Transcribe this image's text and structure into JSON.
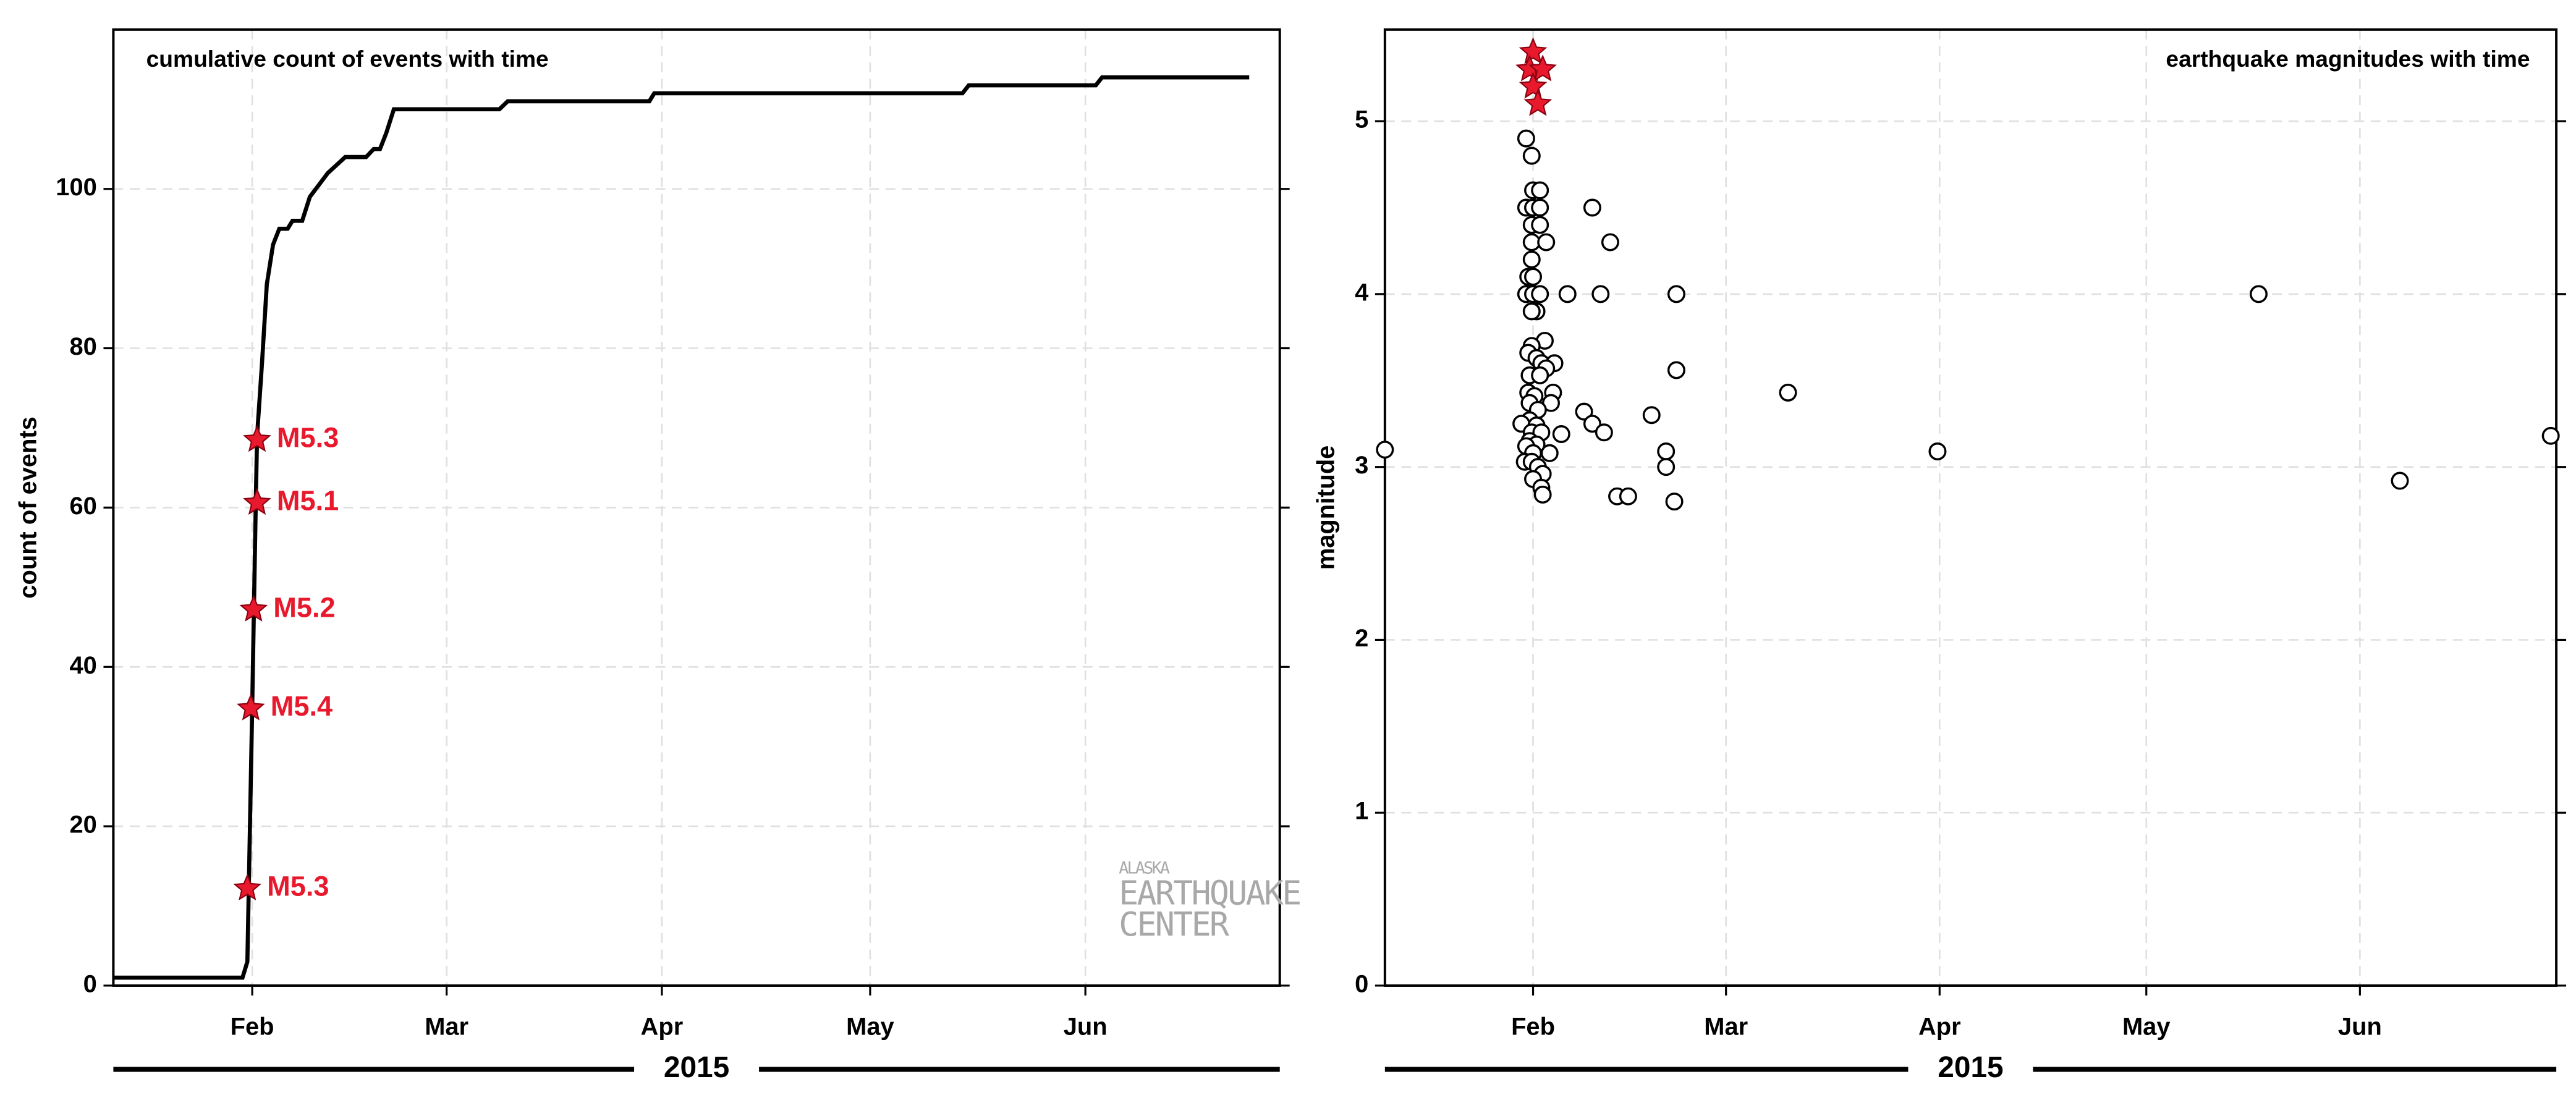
{
  "chart_data": [
    {
      "type": "line",
      "title": "cumulative count of events with time",
      "title_position": "upper left",
      "ylabel": "count of events",
      "xlabel": "2015",
      "color": "#000000",
      "x": [
        12,
        30.6,
        31.3,
        31.5,
        32,
        32.5,
        32.7,
        33.4,
        34.1,
        35,
        35.9,
        37.1,
        37.8,
        39.2,
        40.3,
        42.9,
        45.4,
        48.4,
        49.5,
        50.4,
        51.3,
        52.4,
        67.6,
        68.8,
        89.2,
        89.9,
        134.3,
        135.2,
        153.5,
        154.4,
        175.6
      ],
      "values": [
        1,
        1,
        3,
        12,
        35,
        60,
        69,
        78,
        88,
        93,
        95,
        95,
        96,
        96,
        99,
        102,
        104,
        104,
        105,
        105,
        107,
        110,
        110,
        111,
        111,
        112,
        112,
        113,
        113,
        114,
        114
      ],
      "xlim": [
        12,
        180
      ],
      "ylim": [
        0,
        120
      ],
      "xticks": [
        {
          "value": 32,
          "label": "Feb"
        },
        {
          "value": 60,
          "label": "Mar"
        },
        {
          "value": 91,
          "label": "Apr"
        },
        {
          "value": 121,
          "label": "May"
        },
        {
          "value": 152,
          "label": "Jun"
        }
      ],
      "yticks": [
        0,
        20,
        40,
        60,
        80,
        100
      ],
      "grid": true,
      "annotations": [
        {
          "x": 31.3,
          "y": 12.2,
          "text": "M5.3"
        },
        {
          "x": 31.8,
          "y": 34.8,
          "text": "M5.4"
        },
        {
          "x": 32.2,
          "y": 47.2,
          "text": "M5.2"
        },
        {
          "x": 32.7,
          "y": 60.6,
          "text": "M5.1"
        },
        {
          "x": 32.7,
          "y": 68.5,
          "text": "M5.3"
        }
      ],
      "annotation_color": "#e8192c",
      "watermark": [
        "ALASKA",
        "EARTHQUAKE",
        "CENTER"
      ]
    },
    {
      "type": "scatter",
      "title": "earthquake magnitudes with time",
      "title_position": "upper right",
      "ylabel": "magnitude",
      "xlabel": "2015",
      "color": "#000000",
      "x": [
        10.5,
        179.7,
        31.0,
        31.8,
        32.0,
        33.0,
        31.0,
        32.0,
        33.0,
        31.8,
        33.0,
        31.8,
        33.9,
        31.8,
        31.3,
        32.0,
        31.0,
        32.0,
        33.0,
        32.5,
        31.8,
        33.7,
        31.8,
        31.3,
        32.5,
        33.2,
        35.1,
        33.9,
        31.5,
        33.0,
        31.3,
        34.9,
        32.2,
        34.6,
        31.5,
        32.7,
        31.5,
        30.3,
        32.5,
        31.8,
        33.2,
        36.1,
        31.5,
        32.5,
        31.0,
        32.0,
        34.4,
        30.8,
        31.8,
        32.7,
        33.4,
        32.0,
        33.2,
        33.4,
        37.0,
        40.6,
        43.2,
        41.8,
        39.4,
        40.6,
        42.3,
        44.2,
        45.8,
        49.2,
        51.3,
        51.3,
        52.8,
        52.8,
        52.5,
        69.0,
        90.7,
        137.3,
        157.8
      ],
      "values": [
        3.1,
        3.18,
        4.9,
        4.8,
        4.6,
        4.6,
        4.5,
        4.5,
        4.5,
        4.4,
        4.4,
        4.3,
        4.3,
        4.2,
        4.1,
        4.1,
        4.0,
        4.0,
        4.0,
        3.9,
        3.9,
        3.73,
        3.7,
        3.66,
        3.63,
        3.6,
        3.6,
        3.57,
        3.53,
        3.53,
        3.43,
        3.43,
        3.41,
        3.37,
        3.37,
        3.33,
        3.27,
        3.25,
        3.24,
        3.2,
        3.2,
        3.19,
        3.15,
        3.13,
        3.12,
        3.08,
        3.08,
        3.03,
        3.03,
        3.0,
        2.96,
        2.93,
        2.88,
        2.84,
        4.0,
        4.5,
        4.3,
        4.0,
        3.32,
        3.25,
        3.2,
        2.83,
        2.83,
        3.3,
        3.09,
        3.0,
        4.0,
        3.56,
        2.8,
        3.43,
        3.09,
        4.0,
        2.92
      ],
      "large_events": {
        "x": [
          32.0,
          31.5,
          33.4,
          32.0,
          32.7
        ],
        "values": [
          5.4,
          5.3,
          5.3,
          5.2,
          5.1
        ],
        "color": "#e8192c"
      },
      "xlim": [
        10.5,
        180.5
      ],
      "ylim": [
        0,
        5.53
      ],
      "xticks": [
        {
          "value": 32,
          "label": "Feb"
        },
        {
          "value": 60,
          "label": "Mar"
        },
        {
          "value": 91,
          "label": "Apr"
        },
        {
          "value": 121,
          "label": "May"
        },
        {
          "value": 152,
          "label": "Jun"
        }
      ],
      "yticks": [
        0,
        1,
        2,
        3,
        4,
        5
      ],
      "grid": true
    }
  ]
}
